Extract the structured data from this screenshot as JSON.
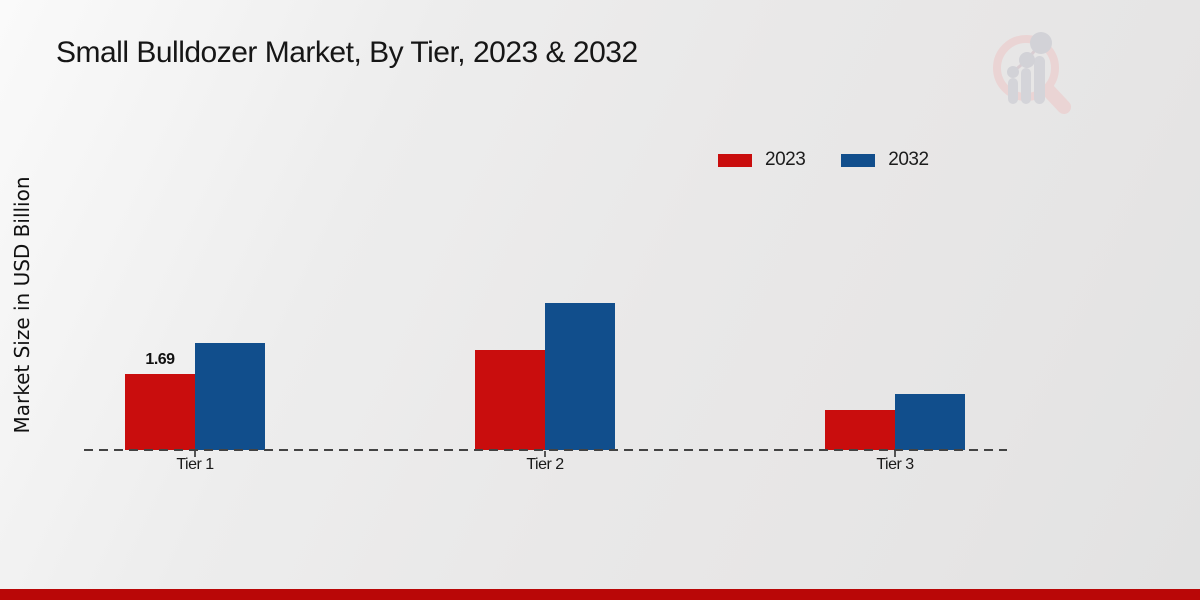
{
  "page": {
    "title": "Small Bulldozer Market, By Tier, 2023 & 2032",
    "y_axis_label": "Market Size in USD Billion"
  },
  "legend": {
    "items": [
      {
        "label": "2023",
        "color": "#c90d0d"
      },
      {
        "label": "2032",
        "color": "#114e8c"
      }
    ]
  },
  "chart_data": {
    "type": "bar",
    "title": "Small Bulldozer Market, By Tier, 2023 & 2032",
    "ylabel": "Market Size in USD Billion",
    "xlabel": "",
    "categories": [
      "Tier 1",
      "Tier 2",
      "Tier 3"
    ],
    "series": [
      {
        "name": "2023",
        "color": "#c90d0d",
        "values": [
          1.69,
          2.22,
          0.89
        ],
        "labels": [
          "1.69",
          null,
          null
        ]
      },
      {
        "name": "2032",
        "color": "#114e8c",
        "values": [
          2.38,
          3.27,
          1.25
        ],
        "labels": [
          null,
          null,
          null
        ]
      }
    ],
    "unit": "USD Billion",
    "ylim": [
      0,
      3.6
    ],
    "grid": false,
    "legend_position": "top-right",
    "baseline_style": "dashed"
  },
  "branding": {
    "watermark_icon": "magnifier-bar-chart-logo",
    "footer_accent_color": "#b90707"
  }
}
